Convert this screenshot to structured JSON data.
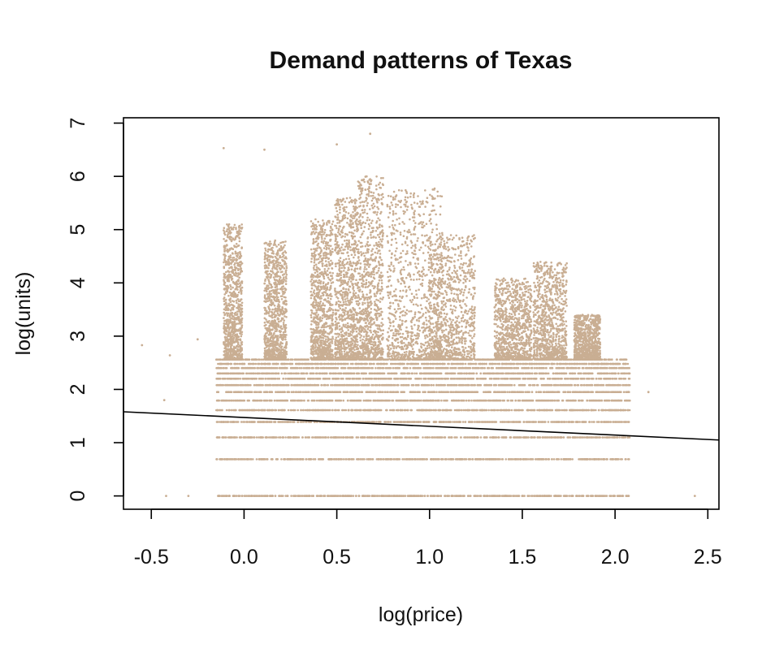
{
  "chart_data": {
    "type": "scatter",
    "title": "Demand patterns of Texas",
    "xlabel": "log(price)",
    "ylabel": "log(units)",
    "xlim": [
      -0.65,
      2.56
    ],
    "ylim": [
      -0.25,
      7.1
    ],
    "x_ticks": [
      -0.5,
      0.0,
      0.5,
      1.0,
      1.5,
      2.0,
      2.5
    ],
    "x_tick_labels": [
      "-0.5",
      "0.0",
      "0.5",
      "1.0",
      "1.5",
      "2.0",
      "2.5"
    ],
    "y_ticks": [
      0,
      1,
      2,
      3,
      4,
      5,
      6,
      7
    ],
    "y_tick_labels": [
      "0",
      "1",
      "2",
      "3",
      "4",
      "5",
      "6",
      "7"
    ],
    "point_color": "#c9ae93",
    "line_color": "#000000",
    "regression_line": {
      "x": [
        -0.65,
        2.56
      ],
      "y": [
        1.58,
        1.05
      ]
    },
    "discrete_levels": [
      0,
      0.69,
      1.1,
      1.39,
      1.61,
      1.79,
      1.95,
      2.08,
      2.2,
      2.3,
      2.4,
      2.48,
      2.56
    ],
    "level_x_range": [
      -0.15,
      2.08
    ],
    "clusters": [
      {
        "x_center": -0.06,
        "x_width": 0.1,
        "y_max": 5.1
      },
      {
        "x_center": 0.17,
        "x_width": 0.12,
        "y_max": 4.8
      },
      {
        "x_center": 0.42,
        "x_width": 0.12,
        "y_max": 5.2
      },
      {
        "x_center": 0.55,
        "x_width": 0.12,
        "y_max": 5.6
      },
      {
        "x_center": 0.68,
        "x_width": 0.14,
        "y_max": 6.0
      },
      {
        "x_center": 0.92,
        "x_width": 0.3,
        "y_max": 5.8
      },
      {
        "x_center": 1.12,
        "x_width": 0.25,
        "y_max": 4.9
      },
      {
        "x_center": 1.45,
        "x_width": 0.2,
        "y_max": 4.1
      },
      {
        "x_center": 1.65,
        "x_width": 0.18,
        "y_max": 4.4
      },
      {
        "x_center": 1.85,
        "x_width": 0.14,
        "y_max": 3.4
      }
    ],
    "outliers": [
      {
        "x": -0.55,
        "y": 2.83
      },
      {
        "x": -0.4,
        "y": 2.64
      },
      {
        "x": -0.43,
        "y": 1.8
      },
      {
        "x": -0.42,
        "y": 0
      },
      {
        "x": -0.25,
        "y": 2.94
      },
      {
        "x": -0.3,
        "y": 0
      },
      {
        "x": -0.11,
        "y": 6.53
      },
      {
        "x": 0.11,
        "y": 6.5
      },
      {
        "x": 0.5,
        "y": 6.6
      },
      {
        "x": 0.68,
        "y": 6.8
      },
      {
        "x": 2.18,
        "y": 1.95
      },
      {
        "x": 2.43,
        "y": 0
      }
    ],
    "grid": false,
    "legend": "none"
  }
}
